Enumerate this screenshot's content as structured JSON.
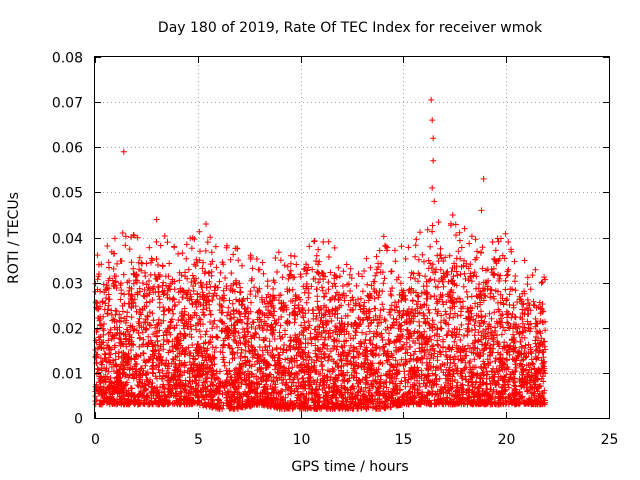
{
  "chart_data": {
    "type": "scatter",
    "title": "Day 180 of 2019, Rate Of TEC Index for receiver wmok",
    "xlabel": "GPS time / hours",
    "ylabel": "ROTI / TECUs",
    "xlim": [
      0,
      25
    ],
    "ylim": [
      0,
      0.08
    ],
    "x_ticks": [
      0,
      5,
      10,
      15,
      20,
      25
    ],
    "x_tick_labels": [
      "0",
      "5",
      "10",
      "15",
      "20",
      "25"
    ],
    "y_ticks": [
      0,
      0.01,
      0.02,
      0.03,
      0.04,
      0.05,
      0.06,
      0.07,
      0.08
    ],
    "y_tick_labels": [
      "0",
      "0.01",
      "0.02",
      "0.03",
      "0.04",
      "0.05",
      "0.06",
      "0.07",
      "0.08"
    ],
    "grid": true,
    "marker": "+",
    "series_color": "#ff0000",
    "x_range_of_data": [
      0,
      21.9
    ],
    "notable_points": [
      {
        "x": 1.4,
        "y": 0.059
      },
      {
        "x": 16.35,
        "y": 0.0705
      },
      {
        "x": 16.4,
        "y": 0.066
      },
      {
        "x": 16.45,
        "y": 0.062
      },
      {
        "x": 16.45,
        "y": 0.057
      },
      {
        "x": 18.9,
        "y": 0.053
      },
      {
        "x": 16.4,
        "y": 0.051
      },
      {
        "x": 16.5,
        "y": 0.048
      },
      {
        "x": 17.4,
        "y": 0.045
      },
      {
        "x": 18.8,
        "y": 0.046
      },
      {
        "x": 3.0,
        "y": 0.044
      },
      {
        "x": 5.4,
        "y": 0.043
      },
      {
        "x": 1.35,
        "y": 0.041
      },
      {
        "x": 20.1,
        "y": 0.039
      },
      {
        "x": 11.1,
        "y": 0.039
      }
    ],
    "envelope_hourly": [
      {
        "x": 0,
        "upper": 0.028,
        "lower": 0.003
      },
      {
        "x": 1,
        "upper": 0.032,
        "lower": 0.003
      },
      {
        "x": 2,
        "upper": 0.033,
        "lower": 0.003
      },
      {
        "x": 3,
        "upper": 0.036,
        "lower": 0.003
      },
      {
        "x": 4,
        "upper": 0.03,
        "lower": 0.003
      },
      {
        "x": 5,
        "upper": 0.036,
        "lower": 0.003
      },
      {
        "x": 6,
        "upper": 0.031,
        "lower": 0.002
      },
      {
        "x": 7,
        "upper": 0.03,
        "lower": 0.002
      },
      {
        "x": 8,
        "upper": 0.027,
        "lower": 0.003
      },
      {
        "x": 9,
        "upper": 0.029,
        "lower": 0.002
      },
      {
        "x": 10,
        "upper": 0.028,
        "lower": 0.002
      },
      {
        "x": 11,
        "upper": 0.033,
        "lower": 0.002
      },
      {
        "x": 12,
        "upper": 0.028,
        "lower": 0.002
      },
      {
        "x": 13,
        "upper": 0.027,
        "lower": 0.002
      },
      {
        "x": 14,
        "upper": 0.033,
        "lower": 0.002
      },
      {
        "x": 15,
        "upper": 0.03,
        "lower": 0.003
      },
      {
        "x": 16,
        "upper": 0.034,
        "lower": 0.003
      },
      {
        "x": 17,
        "upper": 0.038,
        "lower": 0.003
      },
      {
        "x": 18,
        "upper": 0.034,
        "lower": 0.003
      },
      {
        "x": 19,
        "upper": 0.031,
        "lower": 0.003
      },
      {
        "x": 20,
        "upper": 0.033,
        "lower": 0.003
      },
      {
        "x": 21,
        "upper": 0.027,
        "lower": 0.003
      },
      {
        "x": 21.9,
        "upper": 0.025,
        "lower": 0.003
      }
    ]
  }
}
